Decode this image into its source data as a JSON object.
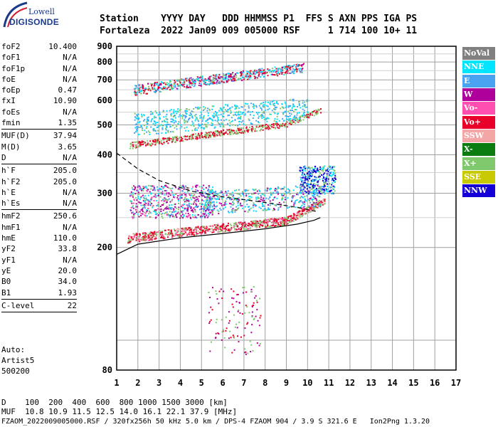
{
  "logo": {
    "maker": "Lowell",
    "brand": "DIGISONDE"
  },
  "header": {
    "line1": "Station    YYYY DAY   DDD HHMMSS P1  FFS S AXN PPS IGA PS",
    "line2": "Fortaleza  2022 Jan09 009 005000 RSF     1 714 100 10+ 11"
  },
  "params": [
    {
      "label": "foF2",
      "value": "10.400"
    },
    {
      "label": "foF1",
      "value": "N/A"
    },
    {
      "label": "foF1p",
      "value": "N/A"
    },
    {
      "label": "foE",
      "value": "N/A"
    },
    {
      "label": "foEp",
      "value": "0.47"
    },
    {
      "label": "fxI",
      "value": "10.90"
    },
    {
      "label": "foEs",
      "value": "N/A"
    },
    {
      "label": "fmin",
      "value": "1.35"
    },
    {
      "sep": true
    },
    {
      "label": "MUF(D)",
      "value": "37.94"
    },
    {
      "label": "M(D)",
      "value": "3.65"
    },
    {
      "label": "D",
      "value": "N/A"
    },
    {
      "sep": true
    },
    {
      "label": "h`F",
      "value": "205.0"
    },
    {
      "label": "h`F2",
      "value": "205.0"
    },
    {
      "label": "h`E",
      "value": "N/A"
    },
    {
      "label": "h`Es",
      "value": "N/A"
    },
    {
      "sep": true
    },
    {
      "label": "hmF2",
      "value": "250.6"
    },
    {
      "label": "hmF1",
      "value": "N/A"
    },
    {
      "label": "hmE",
      "value": "110.0"
    },
    {
      "label": "yF2",
      "value": "33.8"
    },
    {
      "label": "yF1",
      "value": "N/A"
    },
    {
      "label": "yE",
      "value": "20.0"
    },
    {
      "label": "B0",
      "value": "34.0"
    },
    {
      "label": "B1",
      "value": "1.93"
    },
    {
      "sep": true
    },
    {
      "label": "C-level",
      "value": "22"
    },
    {
      "sep": true
    }
  ],
  "autoscaling": {
    "line1": "Auto:",
    "line2": "Artist5",
    "line3": "500200"
  },
  "legend": [
    {
      "label": "NoVal",
      "color": "#808080"
    },
    {
      "label": "NNE",
      "color": "#00e5ff"
    },
    {
      "label": "E",
      "color": "#4aa3f0"
    },
    {
      "label": "W",
      "color": "#b0009c"
    },
    {
      "label": "Vo-",
      "color": "#ff4fb0"
    },
    {
      "label": "Vo+",
      "color": "#e8002a"
    },
    {
      "label": "SSW",
      "color": "#f4a6a6"
    },
    {
      "label": "X-",
      "color": "#0b7d10"
    },
    {
      "label": "X+",
      "color": "#7fc86b"
    },
    {
      "label": "SSE",
      "color": "#c9c900"
    },
    {
      "label": "NNW",
      "color": "#1400d6"
    }
  ],
  "footer": {
    "line1": "D    100  200  400  600  800 1000 1500 3000 [km]",
    "line2": "MUF  10.8 10.9 11.5 12.5 14.0 16.1 22.1 37.9 [MHz]",
    "line3": "FZAOM_2022009005000.RSF / 320fx256h 50 kHz 5.0 km / DPS-4 FZAOM 904 / 3.9 S 321.6 E   Ion2Png 1.3.20"
  },
  "chart_data": {
    "type": "scatter",
    "title": "",
    "xlabel": "",
    "ylabel": "",
    "xlim": [
      1,
      17
    ],
    "ylim": [
      80,
      900
    ],
    "y_scale": "log",
    "x_ticks": [
      1,
      2,
      3,
      4,
      5,
      6,
      7,
      8,
      9,
      10,
      11,
      12,
      13,
      14,
      15,
      16,
      17
    ],
    "y_ticks": [
      80,
      200,
      300,
      400,
      500,
      600,
      700,
      800,
      900
    ],
    "grid": true,
    "traces": [
      {
        "region": "F-layer first hop",
        "freq_range": [
          1.5,
          10.8
        ],
        "height_range": [
          205,
          330
        ],
        "dominant": [
          "Vo+",
          "X+",
          "W",
          "E"
        ]
      },
      {
        "region": "second hop",
        "freq_range": [
          1.6,
          10.6
        ],
        "height_range": [
          410,
          650
        ],
        "dominant": [
          "E",
          "Vo+",
          "X+",
          "NNE"
        ]
      },
      {
        "region": "third hop",
        "freq_range": [
          1.8,
          10.0
        ],
        "height_range": [
          620,
          860
        ],
        "dominant": [
          "E",
          "Vo+",
          "X+"
        ]
      },
      {
        "region": "spread F",
        "freq_range": [
          9.5,
          11.3
        ],
        "height_range": [
          300,
          380
        ],
        "dominant": [
          "NNW",
          "E"
        ]
      },
      {
        "region": "low-height echoes",
        "freq_range": [
          5.3,
          7.8
        ],
        "height_range": [
          80,
          165
        ],
        "dominant": [
          "Vo+",
          "X+"
        ]
      }
    ],
    "profile_curve": [
      [
        1.0,
        190
      ],
      [
        2.0,
        205
      ],
      [
        4.0,
        215
      ],
      [
        6.0,
        222
      ],
      [
        8.0,
        230
      ],
      [
        9.5,
        238
      ],
      [
        10.3,
        245
      ],
      [
        10.6,
        250
      ]
    ],
    "profile_upper_dashed": [
      [
        1.0,
        405
      ],
      [
        2.0,
        360
      ],
      [
        3.0,
        330
      ],
      [
        4.5,
        305
      ],
      [
        6.0,
        292
      ],
      [
        8.0,
        280
      ],
      [
        9.5,
        270
      ],
      [
        10.4,
        262
      ]
    ]
  }
}
